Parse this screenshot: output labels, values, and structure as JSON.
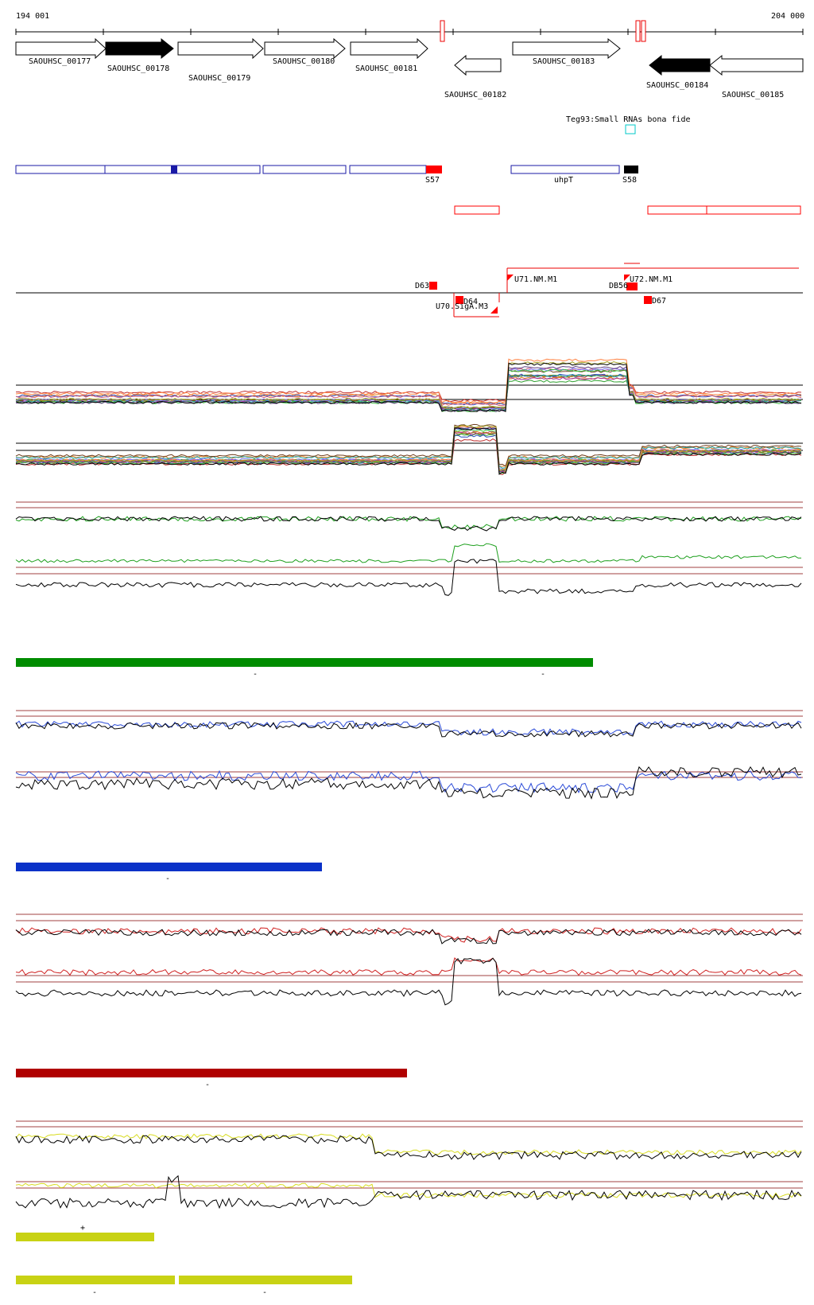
{
  "ruler": {
    "start_label": "194 001",
    "end_label": "204 000"
  },
  "genes": [
    {
      "label": "SAOUHSC_00177"
    },
    {
      "label": "SAOUHSC_00178"
    },
    {
      "label": "SAOUHSC_00179"
    },
    {
      "label": "SAOUHSC_00180"
    },
    {
      "label": "SAOUHSC_00181"
    },
    {
      "label": "SAOUHSC_00182"
    },
    {
      "label": "SAOUHSC_00183"
    },
    {
      "label": "SAOUHSC_00184"
    },
    {
      "label": "SAOUHSC_00185"
    }
  ],
  "small_rna": {
    "label": "Teg93:Small RNAs bona fide",
    "color": "#00c8c8"
  },
  "operons": {
    "labels": [
      "S57",
      "uhpT",
      "S58"
    ],
    "colors": {
      "frame": "#1a1aa6",
      "red": "#ff0000",
      "black": "#000000"
    }
  },
  "promoters": {
    "labels": [
      "D63",
      "D64",
      "U70.SigA.M3",
      "U71.NM.M1",
      "DB56",
      "U72.NM.M1",
      "D67"
    ]
  },
  "segment_marks": {
    "green": [
      "-",
      "-"
    ],
    "blue": [
      "-"
    ],
    "red": [
      "-"
    ],
    "yellow": [
      "+",
      "-",
      "-"
    ]
  },
  "colors": {
    "green": "#008c00",
    "green_line": "#1fa01f",
    "blue": "#0a32c8",
    "blue_line": "#2a4ad8",
    "red": "#b00000",
    "red_line": "#d02020",
    "yellow": "#c8d214",
    "yellow_line": "#d8dc20",
    "brown_ref": "#a04040"
  }
}
